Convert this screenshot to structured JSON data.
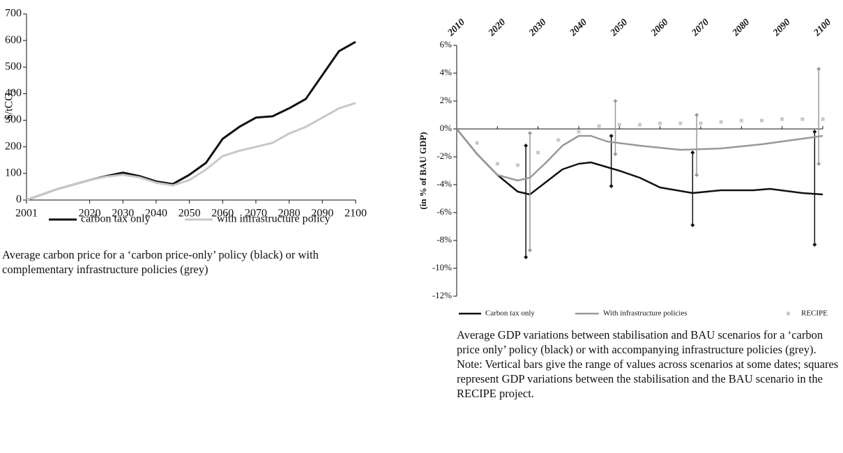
{
  "chart_data": [
    {
      "type": "line",
      "y_label": "$/tCO₂",
      "caption": "Average carbon price for a ‘carbon price-only’ policy (black) or with complementary infrastructure policies (grey)",
      "xlim": [
        2001,
        2100
      ],
      "xticks": [
        2001,
        2020,
        2030,
        2040,
        2050,
        2060,
        2070,
        2080,
        2090,
        2100
      ],
      "ylim": [
        0,
        700
      ],
      "yticks": [
        0,
        100,
        200,
        300,
        400,
        500,
        600,
        700
      ],
      "series": [
        {
          "name": "carbon tax only",
          "color": "#111111",
          "mode": "lines",
          "x": [
            2001,
            2010,
            2020,
            2025,
            2030,
            2035,
            2040,
            2045,
            2050,
            2055,
            2060,
            2065,
            2070,
            2075,
            2080,
            2085,
            2090,
            2095,
            2100
          ],
          "values": [
            0,
            40,
            75,
            90,
            103,
            90,
            70,
            60,
            95,
            140,
            230,
            275,
            310,
            315,
            345,
            380,
            470,
            560,
            595
          ]
        },
        {
          "name": "with infrastructure policy",
          "color": "#c8c8c8",
          "mode": "lines",
          "x": [
            2001,
            2010,
            2020,
            2025,
            2030,
            2035,
            2040,
            2045,
            2050,
            2055,
            2060,
            2065,
            2070,
            2075,
            2080,
            2085,
            2090,
            2095,
            2100
          ],
          "values": [
            0,
            40,
            75,
            88,
            95,
            85,
            65,
            55,
            75,
            115,
            165,
            185,
            200,
            215,
            250,
            275,
            310,
            345,
            365
          ]
        }
      ]
    },
    {
      "type": "line",
      "y_label": "(in % of BAU GDP)",
      "caption": "Average GDP variations between stabilisation and BAU scenarios for a ‘carbon price only’ policy (black) or with accompanying infrastructure policies (grey). Note: Vertical bars give the range of values across scenarios at some dates; squares represent GDP variations between the stabilisation and the BAU scenario in the RECIPE project.",
      "xlim": [
        2010,
        2100
      ],
      "xticks": [
        2010,
        2020,
        2030,
        2040,
        2050,
        2060,
        2070,
        2080,
        2090,
        2100
      ],
      "ylim": [
        -12,
        6
      ],
      "yticks": [
        {
          "value": -12,
          "label": "-12%"
        },
        {
          "value": -10,
          "label": "-10%"
        },
        {
          "value": -8,
          "label": "-8%"
        },
        {
          "value": -6,
          "label": "-6%"
        },
        {
          "value": -4,
          "label": "-4%"
        },
        {
          "value": -2,
          "label": "-2%"
        },
        {
          "value": 0,
          "label": "0%"
        },
        {
          "value": 2,
          "label": "2%"
        },
        {
          "value": 4,
          "label": "4%"
        },
        {
          "value": 6,
          "label": "6%"
        }
      ],
      "series": [
        {
          "name": "Carbon tax only",
          "color": "#111111",
          "mode": "lines",
          "x": [
            2010,
            2015,
            2020,
            2025,
            2028,
            2032,
            2036,
            2040,
            2043,
            2050,
            2055,
            2060,
            2068,
            2075,
            2083,
            2087,
            2095,
            2100
          ],
          "values": [
            0,
            -1.8,
            -3.3,
            -4.5,
            -4.7,
            -3.8,
            -2.9,
            -2.5,
            -2.4,
            -3.0,
            -3.5,
            -4.2,
            -4.6,
            -4.4,
            -4.4,
            -4.3,
            -4.6,
            -4.7
          ],
          "error_bars": {
            "x": [
              2027,
              2048,
              2068,
              2098
            ],
            "low": [
              -9.2,
              -4.1,
              -6.9,
              -8.3
            ],
            "high": [
              -1.2,
              -0.5,
              -1.7,
              -0.2
            ]
          }
        },
        {
          "name": "With infrastructure policies",
          "color": "#999999",
          "mode": "lines",
          "x": [
            2010,
            2015,
            2020,
            2025,
            2028,
            2032,
            2036,
            2040,
            2043,
            2047,
            2055,
            2065,
            2075,
            2085,
            2095,
            2100
          ],
          "values": [
            0,
            -1.8,
            -3.3,
            -3.7,
            -3.5,
            -2.4,
            -1.2,
            -0.5,
            -0.5,
            -0.9,
            -1.2,
            -1.5,
            -1.4,
            -1.1,
            -0.7,
            -0.5
          ],
          "error_bars": {
            "x": [
              2028,
              2049,
              2069,
              2099
            ],
            "low": [
              -8.7,
              -1.8,
              -3.3,
              -2.5
            ],
            "high": [
              -0.3,
              2.0,
              1.0,
              4.3
            ]
          }
        },
        {
          "name": "RECIPE",
          "color": "#c8c8c8",
          "mode": "markers",
          "x": [
            2015,
            2020,
            2025,
            2030,
            2035,
            2040,
            2045,
            2050,
            2055,
            2060,
            2065,
            2070,
            2075,
            2080,
            2085,
            2090,
            2095,
            2100
          ],
          "values": [
            -1.0,
            -2.5,
            -2.6,
            -1.7,
            -0.8,
            -0.2,
            0.2,
            0.3,
            0.3,
            0.4,
            0.4,
            0.4,
            0.5,
            0.6,
            0.6,
            0.7,
            0.7,
            0.7
          ]
        }
      ]
    }
  ]
}
